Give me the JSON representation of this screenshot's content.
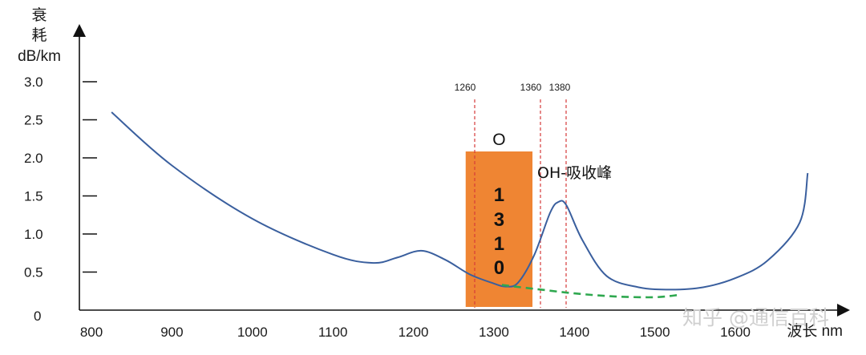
{
  "chart_data": {
    "type": "line",
    "ylabel": [
      "衰",
      "耗",
      "dB/km"
    ],
    "xlabel": "波长 nm",
    "xticks": [
      "800",
      "900",
      "1000",
      "1100",
      "1200",
      "1300",
      "1400",
      "1500",
      "1600"
    ],
    "yticks": [
      "0",
      "0.5",
      "1.0",
      "1.5",
      "2.0",
      "2.5",
      "3.0"
    ],
    "xlim": [
      800,
      1700
    ],
    "ylim": [
      0,
      3.0
    ],
    "series": [
      {
        "style": "solid",
        "color": "#3a5f9e",
        "x": [
          825,
          900,
          1000,
          1100,
          1150,
          1180,
          1210,
          1240,
          1270,
          1300,
          1315,
          1330,
          1350,
          1370,
          1380,
          1390,
          1410,
          1440,
          1480,
          1520,
          1560,
          1600,
          1640,
          1680,
          1690
        ],
        "y": [
          2.6,
          1.9,
          1.2,
          0.73,
          0.62,
          0.69,
          0.78,
          0.66,
          0.47,
          0.35,
          0.31,
          0.36,
          0.72,
          1.28,
          1.42,
          1.38,
          0.92,
          0.45,
          0.3,
          0.27,
          0.3,
          0.42,
          0.65,
          1.15,
          1.8
        ]
      },
      {
        "style": "dashed",
        "color": "#2fa84f",
        "x": [
          1310,
          1350,
          1400,
          1450,
          1500,
          1530
        ],
        "y": [
          0.33,
          0.28,
          0.22,
          0.18,
          0.17,
          0.2
        ]
      }
    ],
    "markers": [
      {
        "x": 1260,
        "label": "1260"
      },
      {
        "x": 1360,
        "label": "1360"
      },
      {
        "x": 1380,
        "label": "1380"
      }
    ],
    "band": {
      "x": [
        1265,
        1348
      ],
      "y": [
        0,
        2.0
      ],
      "color": "#ef8533",
      "title": "O",
      "digits": [
        "1",
        "3",
        "1",
        "0"
      ]
    },
    "annotations": [
      {
        "text": "OH-吸收峰",
        "x": 1390,
        "y": 1.83
      }
    ],
    "watermark": "知乎 @通信百科"
  }
}
